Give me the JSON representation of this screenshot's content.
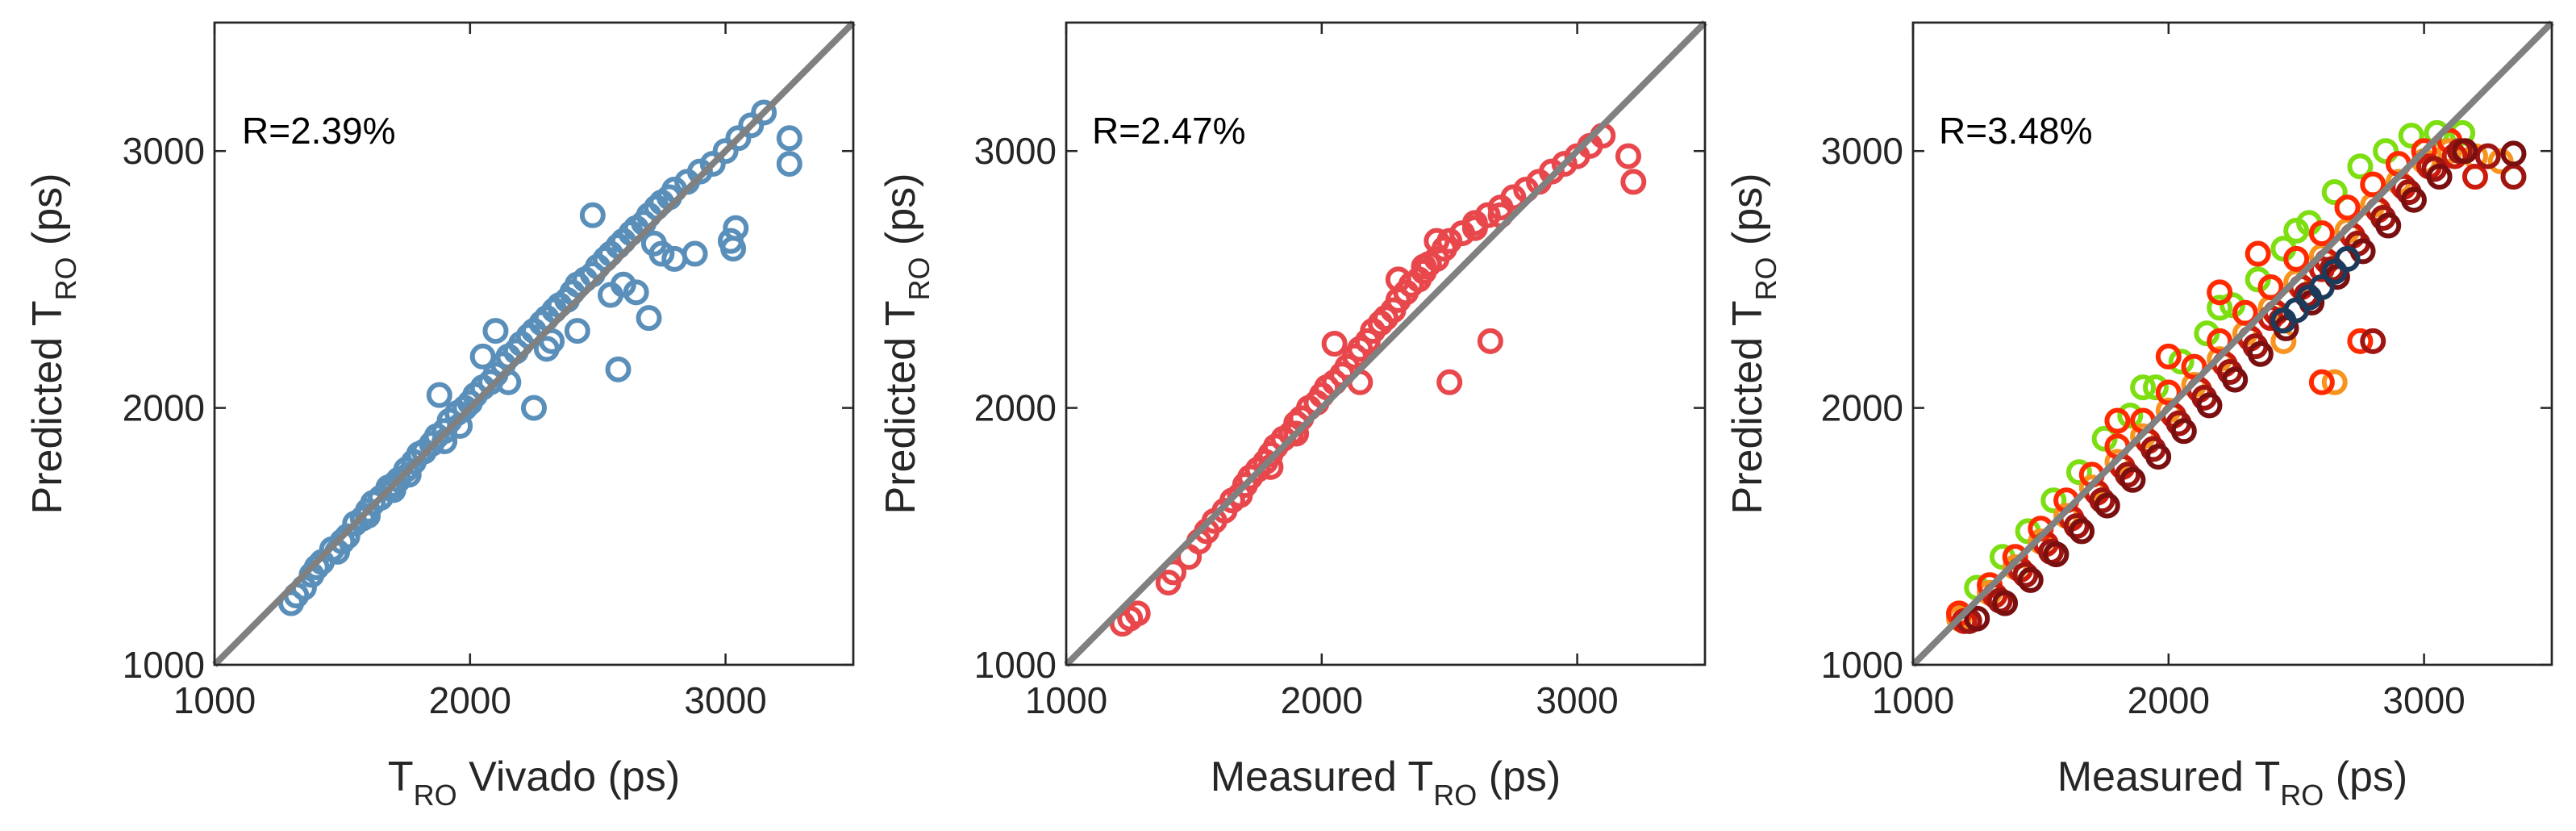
{
  "colors": {
    "panel1_marker": "#5a8fba",
    "panel2_marker": "#e8474c",
    "panel3_palette": [
      "#7dde12",
      "#f8941e",
      "#ff2a00",
      "#cc1b0c",
      "#9e1512",
      "#7a0f10",
      "#1c3a5a"
    ],
    "identity_line": "#808080",
    "axes": "#262626"
  },
  "chart_data": [
    {
      "type": "scatter",
      "annotation": "R=2.39%",
      "xlabel_main": "T",
      "xlabel_sub": "RO",
      "xlabel_post": " Vivado (ps)",
      "xlabel_pre": "",
      "ylabel_main": "Predicted T",
      "ylabel_sub": "RO",
      "ylabel_post": " (ps)",
      "xlim": [
        1000,
        3500
      ],
      "ylim": [
        1000,
        3500
      ],
      "xticks": [
        "1000",
        "2000",
        "3000"
      ],
      "yticks": [
        "1000",
        "2000",
        "3000"
      ],
      "xtick_values": [
        1000,
        2000,
        3000
      ],
      "ytick_values": [
        1000,
        2000,
        3000
      ],
      "identity_line": true,
      "marker": "open circle",
      "series": [
        {
          "x": [
            1300,
            1320,
            1350,
            1380,
            1420,
            1460,
            1500,
            1520,
            1550,
            1580,
            1600,
            1620,
            1650,
            1680,
            1700,
            1720,
            1750,
            1780,
            1800,
            1820,
            1850,
            1870,
            1900,
            1920,
            1950,
            1980,
            2000,
            2020,
            2050,
            2080,
            2100,
            2130,
            2150,
            2180,
            2200,
            2230,
            2250,
            2280,
            2300,
            2330,
            2350,
            2380,
            2400,
            2420,
            2450,
            2480,
            2500,
            2530,
            2550,
            2580,
            2600,
            2630,
            2650,
            2680,
            2700,
            2730,
            2750,
            2780,
            2800,
            2850,
            2900,
            2950,
            3000,
            3050,
            3100,
            3150,
            3250,
            3250,
            3020,
            3030,
            3040,
            2750,
            2580,
            2700,
            1880,
            2480,
            2250,
            1600,
            1700,
            1900,
            2100,
            2050,
            2150,
            2300,
            2420,
            2650,
            2800,
            2880,
            2600,
            1400,
            1480,
            1760,
            1960,
            2320,
            2550,
            2720
          ],
          "y": [
            1240,
            1270,
            1300,
            1350,
            1400,
            1450,
            1480,
            1500,
            1550,
            1570,
            1600,
            1630,
            1650,
            1690,
            1700,
            1720,
            1760,
            1790,
            1820,
            1830,
            1860,
            1890,
            1910,
            1950,
            1980,
            2000,
            2020,
            2050,
            2080,
            2100,
            2130,
            2170,
            2200,
            2220,
            2250,
            2280,
            2300,
            2330,
            2350,
            2380,
            2400,
            2420,
            2450,
            2480,
            2500,
            2520,
            2550,
            2580,
            2600,
            2630,
            2650,
            2680,
            2700,
            2720,
            2750,
            2780,
            2800,
            2820,
            2850,
            2880,
            2920,
            2950,
            3000,
            3050,
            3100,
            3150,
            3050,
            2950,
            2650,
            2620,
            2700,
            2600,
            2150,
            2350,
            2050,
            2750,
            2000,
            1580,
            1680,
            1870,
            2300,
            2200,
            2100,
            2230,
            2300,
            2450,
            2580,
            2600,
            2480,
            1380,
            1440,
            1740,
            1930,
            2260,
            2440,
            2640
          ]
        }
      ]
    },
    {
      "type": "scatter",
      "annotation": "R=2.47%",
      "xlabel_pre": "Measured ",
      "xlabel_main": "T",
      "xlabel_sub": "RO",
      "xlabel_post": " (ps)",
      "ylabel_main": "Predicted T",
      "ylabel_sub": "RO",
      "ylabel_post": " (ps)",
      "xlim": [
        1000,
        3500
      ],
      "ylim": [
        1000,
        3500
      ],
      "xticks": [
        "1000",
        "2000",
        "3000"
      ],
      "yticks": [
        "1000",
        "2000",
        "3000"
      ],
      "xtick_values": [
        1000,
        2000,
        3000
      ],
      "ytick_values": [
        1000,
        2000,
        3000
      ],
      "identity_line": true,
      "marker": "open circle",
      "series": [
        {
          "x": [
            1220,
            1250,
            1280,
            1400,
            1420,
            1480,
            1520,
            1550,
            1580,
            1620,
            1650,
            1680,
            1700,
            1720,
            1750,
            1780,
            1800,
            1820,
            1850,
            1880,
            1900,
            1920,
            1950,
            1980,
            2000,
            2020,
            2050,
            2080,
            2100,
            2130,
            2150,
            2180,
            2200,
            2230,
            2250,
            2280,
            2300,
            2330,
            2350,
            2380,
            2400,
            2420,
            2450,
            2480,
            2500,
            2550,
            2600,
            2650,
            2700,
            2750,
            2800,
            2850,
            2900,
            2950,
            3000,
            3050,
            3100,
            3200,
            3220,
            2660,
            2500,
            2150,
            1900,
            2050,
            2300,
            2450,
            2600,
            2700,
            2400,
            2250,
            1800
          ],
          "y": [
            1160,
            1180,
            1200,
            1320,
            1360,
            1420,
            1480,
            1520,
            1560,
            1600,
            1640,
            1660,
            1700,
            1730,
            1760,
            1790,
            1820,
            1850,
            1880,
            1900,
            1940,
            1960,
            2000,
            2020,
            2050,
            2080,
            2100,
            2130,
            2160,
            2200,
            2230,
            2260,
            2300,
            2330,
            2350,
            2380,
            2420,
            2450,
            2480,
            2500,
            2530,
            2560,
            2580,
            2620,
            2650,
            2680,
            2720,
            2750,
            2780,
            2820,
            2850,
            2880,
            2920,
            2950,
            2980,
            3020,
            3060,
            2980,
            2880,
            2260,
            2100,
            2100,
            1900,
            2250,
            2500,
            2650,
            2700,
            2750,
            2550,
            2350,
            1770
          ]
        }
      ]
    },
    {
      "type": "scatter",
      "annotation": "R=3.48%",
      "xlabel_pre": "Measured ",
      "xlabel_main": "T",
      "xlabel_sub": "RO",
      "xlabel_post": " (ps)",
      "ylabel_main": "Predicted T",
      "ylabel_sub": "RO",
      "ylabel_post": " (ps)",
      "xlim": [
        1000,
        3500
      ],
      "ylim": [
        1000,
        3500
      ],
      "xticks": [
        "1000",
        "2000",
        "3000"
      ],
      "yticks": [
        "1000",
        "2000",
        "3000"
      ],
      "xtick_values": [
        1000,
        2000,
        3000
      ],
      "ytick_values": [
        1000,
        2000,
        3000
      ],
      "identity_line": true,
      "marker": "open circle",
      "series": [
        {
          "x": [
            1180,
            1250,
            1350,
            1450,
            1550,
            1650,
            1750,
            1850,
            1950,
            2050,
            2150,
            2250,
            2350,
            2450,
            2550,
            2650,
            2750,
            2850,
            2950,
            3050,
            3150,
            2500,
            2200,
            1900
          ],
          "y": [
            1190,
            1300,
            1420,
            1520,
            1640,
            1750,
            1880,
            1970,
            2080,
            2180,
            2290,
            2400,
            2500,
            2620,
            2720,
            2840,
            2940,
            3000,
            3060,
            3070,
            3070,
            2690,
            2390,
            2080
          ]
        },
        {
          "x": [
            1180,
            1300,
            1400,
            1500,
            1600,
            1700,
            1800,
            1900,
            2000,
            2100,
            2200,
            2300,
            2400,
            2500,
            2600,
            2700,
            2800,
            2900,
            3000,
            3100,
            3200,
            3300,
            2650,
            2450
          ],
          "y": [
            1180,
            1280,
            1380,
            1480,
            1580,
            1690,
            1790,
            1890,
            1990,
            2090,
            2190,
            2290,
            2390,
            2490,
            2590,
            2690,
            2790,
            2880,
            2960,
            3000,
            2980,
            2960,
            2100,
            2260
          ]
        },
        {
          "x": [
            1180,
            1300,
            1400,
            1500,
            1600,
            1700,
            1800,
            1900,
            2000,
            2100,
            2200,
            2300,
            2400,
            2500,
            2600,
            2700,
            2800,
            2900,
            3000,
            3100,
            2750,
            2600,
            2350,
            2200,
            2000,
            1800
          ],
          "y": [
            1200,
            1310,
            1420,
            1530,
            1640,
            1740,
            1850,
            1950,
            2060,
            2160,
            2260,
            2370,
            2470,
            2580,
            2680,
            2780,
            2870,
            2950,
            3000,
            3040,
            2260,
            2100,
            2600,
            2450,
            2200,
            1950
          ]
        },
        {
          "x": [
            1200,
            1320,
            1420,
            1520,
            1620,
            1720,
            1820,
            1920,
            2020,
            2120,
            2220,
            2320,
            2420,
            2520,
            2620,
            2720,
            2820,
            2920,
            3020,
            3120,
            3200,
            2600,
            2400
          ],
          "y": [
            1170,
            1270,
            1370,
            1470,
            1570,
            1670,
            1770,
            1870,
            1970,
            2070,
            2170,
            2270,
            2370,
            2470,
            2570,
            2670,
            2770,
            2860,
            2940,
            2980,
            2900,
            2540,
            2350
          ]
        },
        {
          "x": [
            1220,
            1340,
            1440,
            1540,
            1640,
            1740,
            1840,
            1940,
            2040,
            2140,
            2240,
            2340,
            2440,
            2540,
            2640,
            2740,
            2840,
            2940,
            3040,
            3140,
            3250,
            3350,
            2800
          ],
          "y": [
            1170,
            1250,
            1350,
            1440,
            1540,
            1640,
            1740,
            1840,
            1940,
            2040,
            2140,
            2240,
            2340,
            2440,
            2540,
            2640,
            2740,
            2840,
            2930,
            3000,
            2980,
            2900,
            2260
          ]
        },
        {
          "x": [
            1250,
            1360,
            1460,
            1560,
            1660,
            1760,
            1860,
            1960,
            2060,
            2160,
            2260,
            2360,
            2460,
            2560,
            2660,
            2760,
            2860,
            2960,
            3060,
            3160,
            3350
          ],
          "y": [
            1180,
            1240,
            1330,
            1430,
            1520,
            1620,
            1720,
            1810,
            1910,
            2010,
            2110,
            2210,
            2310,
            2410,
            2510,
            2610,
            2710,
            2810,
            2900,
            3000,
            2990
          ]
        },
        {
          "x": [
            2450,
            2500,
            2550,
            2600,
            2650,
            2700
          ],
          "y": [
            2340,
            2380,
            2430,
            2470,
            2530,
            2580
          ]
        }
      ]
    }
  ]
}
